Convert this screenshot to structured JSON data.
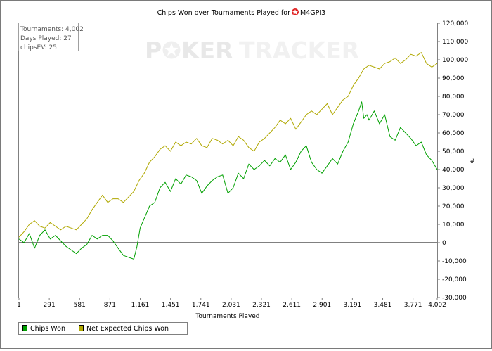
{
  "chart_data": {
    "type": "line",
    "title_prefix": "Chips Won over Tournaments Played for",
    "player": "M4GPI3",
    "xlabel": "Tournaments Played",
    "ylabel": "#",
    "xlim": [
      1,
      4002
    ],
    "ylim": [
      -30000,
      120000
    ],
    "x_ticks": [
      "1",
      "291",
      "581",
      "871",
      "1,161",
      "1,451",
      "1,741",
      "2,031",
      "2,321",
      "2,611",
      "2,901",
      "3,191",
      "3,481",
      "3,771",
      "4,002"
    ],
    "x_tick_values": [
      1,
      291,
      581,
      871,
      1161,
      1451,
      1741,
      2031,
      2321,
      2611,
      2901,
      3191,
      3481,
      3771,
      4002
    ],
    "y_ticks": [
      "120,000",
      "110,000",
      "100,000",
      "90,000",
      "80,000",
      "70,000",
      "60,000",
      "50,000",
      "40,000",
      "30,000",
      "20,000",
      "10,000",
      "0",
      "-10,000",
      "-20,000",
      "-30,000"
    ],
    "y_tick_values": [
      120000,
      110000,
      100000,
      90000,
      80000,
      70000,
      60000,
      50000,
      40000,
      30000,
      20000,
      10000,
      0,
      -10000,
      -20000,
      -30000
    ],
    "grid": false,
    "zero_line": true,
    "legend_position": "bottom-left",
    "stats": [
      "Tournaments: 4,002",
      "Days Played: 27",
      "chipsEV: 25"
    ],
    "series": [
      {
        "name": "Chips Won",
        "color": "#00a000",
        "x": [
          1,
          50,
          100,
          150,
          200,
          250,
          300,
          350,
          400,
          450,
          500,
          550,
          600,
          650,
          700,
          750,
          800,
          850,
          900,
          950,
          1000,
          1050,
          1100,
          1130,
          1160,
          1190,
          1220,
          1250,
          1300,
          1350,
          1400,
          1450,
          1500,
          1550,
          1600,
          1650,
          1700,
          1750,
          1800,
          1850,
          1900,
          1950,
          2000,
          2050,
          2100,
          2150,
          2200,
          2250,
          2300,
          2350,
          2400,
          2450,
          2500,
          2550,
          2600,
          2650,
          2700,
          2750,
          2800,
          2850,
          2900,
          2950,
          3000,
          3050,
          3100,
          3150,
          3200,
          3250,
          3280,
          3300,
          3330,
          3350,
          3400,
          3450,
          3500,
          3550,
          3600,
          3650,
          3700,
          3750,
          3800,
          3850,
          3900,
          3950,
          4002
        ],
        "y": [
          2000,
          0,
          5000,
          -3000,
          4000,
          7000,
          2000,
          4000,
          1000,
          -2000,
          -4000,
          -6000,
          -3000,
          -1000,
          4000,
          2000,
          4000,
          4000,
          1000,
          -3000,
          -7000,
          -8000,
          -9000,
          -2000,
          8000,
          12000,
          16000,
          20000,
          22000,
          30000,
          33000,
          28000,
          35000,
          32000,
          37000,
          36000,
          34000,
          27000,
          31000,
          34000,
          36000,
          37000,
          27000,
          30000,
          38000,
          35000,
          43000,
          40000,
          42000,
          45000,
          42000,
          46000,
          44000,
          48000,
          40000,
          44000,
          50000,
          53000,
          44000,
          40000,
          38000,
          42000,
          46000,
          43000,
          50000,
          55000,
          65000,
          72000,
          77000,
          68000,
          70000,
          67000,
          72000,
          65000,
          70000,
          58000,
          56000,
          63000,
          60000,
          57000,
          53000,
          55000,
          48000,
          45000,
          40000
        ]
      },
      {
        "name": "Net Expected Chips Won",
        "color": "#b0a800",
        "x": [
          1,
          50,
          100,
          150,
          200,
          250,
          300,
          350,
          400,
          450,
          500,
          550,
          600,
          650,
          700,
          750,
          800,
          850,
          900,
          950,
          1000,
          1050,
          1100,
          1150,
          1200,
          1250,
          1300,
          1350,
          1400,
          1450,
          1500,
          1550,
          1600,
          1650,
          1700,
          1750,
          1800,
          1850,
          1900,
          1950,
          2000,
          2050,
          2100,
          2150,
          2200,
          2250,
          2300,
          2350,
          2400,
          2450,
          2500,
          2550,
          2600,
          2650,
          2700,
          2750,
          2800,
          2850,
          2900,
          2950,
          3000,
          3050,
          3100,
          3150,
          3200,
          3250,
          3300,
          3350,
          3400,
          3450,
          3500,
          3550,
          3600,
          3650,
          3700,
          3750,
          3800,
          3850,
          3900,
          3950,
          4002
        ],
        "y": [
          3000,
          6000,
          10000,
          12000,
          9000,
          8000,
          11000,
          9000,
          7000,
          9000,
          8000,
          7000,
          10000,
          13000,
          18000,
          22000,
          26000,
          22000,
          24000,
          24000,
          22000,
          25000,
          28000,
          34000,
          38000,
          44000,
          47000,
          51000,
          53000,
          50000,
          55000,
          53000,
          55000,
          54000,
          57000,
          53000,
          52000,
          57000,
          56000,
          54000,
          56000,
          53000,
          58000,
          56000,
          52000,
          50000,
          55000,
          57000,
          60000,
          63000,
          67000,
          65000,
          68000,
          62000,
          66000,
          70000,
          72000,
          70000,
          73000,
          76000,
          70000,
          74000,
          78000,
          80000,
          86000,
          90000,
          95000,
          97000,
          96000,
          95000,
          98000,
          99000,
          101000,
          98000,
          100000,
          103000,
          102000,
          104000,
          98000,
          96000,
          98000
        ]
      }
    ]
  }
}
